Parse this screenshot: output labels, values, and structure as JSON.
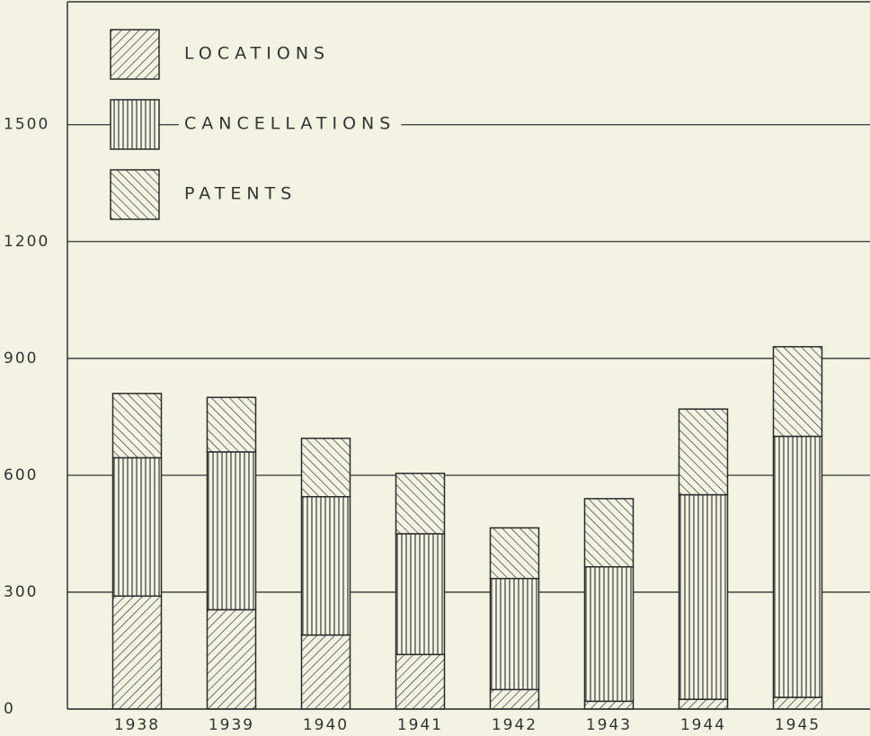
{
  "chart_data": {
    "type": "stacked_bar",
    "categories": [
      "1938",
      "1939",
      "1940",
      "1941",
      "1942",
      "1943",
      "1944",
      "1945"
    ],
    "series": [
      {
        "name": "LOCATIONS",
        "color": "#2a2a2a",
        "pattern": "diagonal",
        "values": [
          290,
          255,
          190,
          140,
          50,
          20,
          25,
          30
        ]
      },
      {
        "name": "CANCELLATIONS",
        "color": "#2a2a2a",
        "pattern": "vertical",
        "values": [
          355,
          405,
          355,
          310,
          285,
          345,
          525,
          670
        ]
      },
      {
        "name": "PATENTS",
        "color": "#2a2a2a",
        "pattern": "backdiagonal",
        "values": [
          165,
          140,
          150,
          155,
          130,
          175,
          220,
          230
        ]
      }
    ],
    "ylim": [
      0,
      1820
    ],
    "yticks": [
      0,
      300,
      600,
      900,
      1200,
      1500
    ],
    "grid": true,
    "legend": "upper left"
  }
}
